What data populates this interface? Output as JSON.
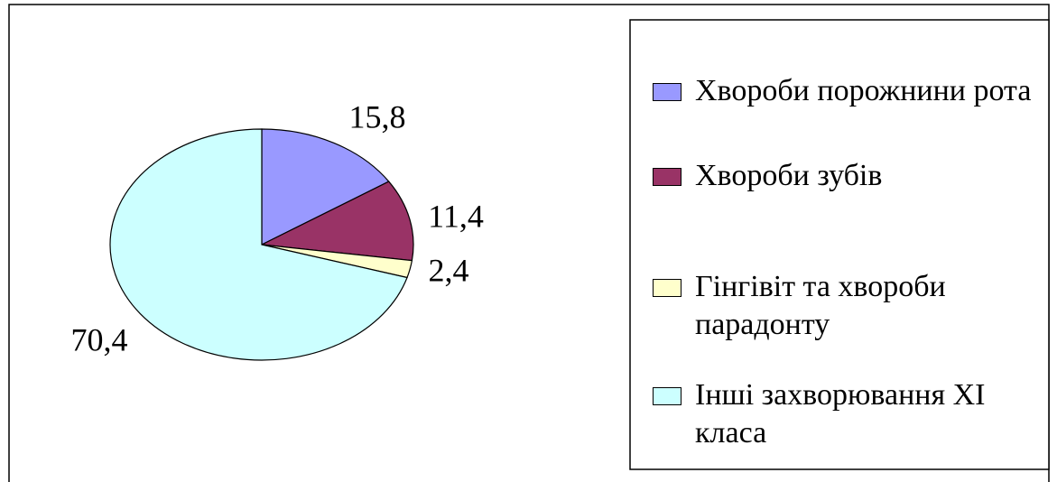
{
  "chart_data": {
    "type": "pie",
    "categories": [
      "Хвороби порожнини рота",
      "Хвороби зубів",
      "Гінгівіт та хвороби парадонту",
      "Інші захворювання XI класа"
    ],
    "values": [
      15.8,
      11.4,
      2.4,
      70.4
    ],
    "value_labels": [
      "15,8",
      "11,4",
      "2,4",
      "70,4"
    ],
    "colors": [
      "#9999ff",
      "#993366",
      "#ffffcc",
      "#ccffff"
    ],
    "legend": "right"
  }
}
